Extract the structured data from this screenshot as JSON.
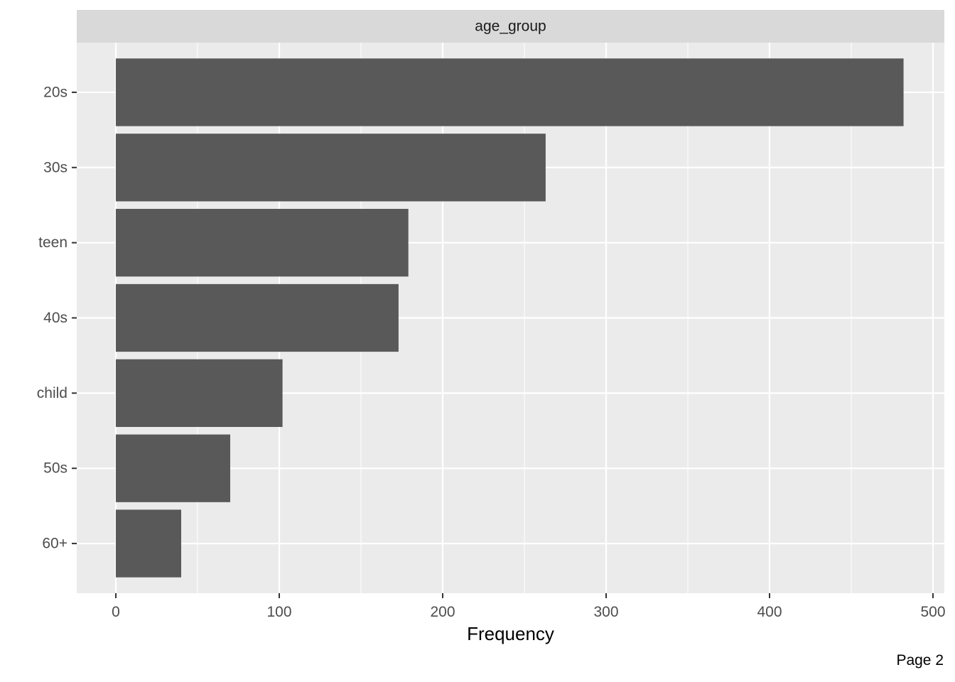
{
  "chart_data": {
    "type": "bar",
    "orientation": "horizontal",
    "facet_label": "age_group",
    "categories": [
      "20s",
      "30s",
      "teen",
      "40s",
      "child",
      "50s",
      "60+"
    ],
    "values": [
      482,
      263,
      179,
      173,
      102,
      70,
      40
    ],
    "xlabel": "Frequency",
    "ylabel": "",
    "xlim": [
      -24,
      502
    ],
    "x_ticks": [
      0,
      100,
      200,
      300,
      400,
      500
    ],
    "x_minor_ticks": [
      50,
      150,
      250,
      350,
      450
    ],
    "grid": true,
    "colors": {
      "bar": "#595959",
      "panel": "#ebebeb",
      "strip": "#d9d9d9",
      "grid": "#ffffff"
    }
  },
  "footer": {
    "page_label": "Page 2"
  }
}
